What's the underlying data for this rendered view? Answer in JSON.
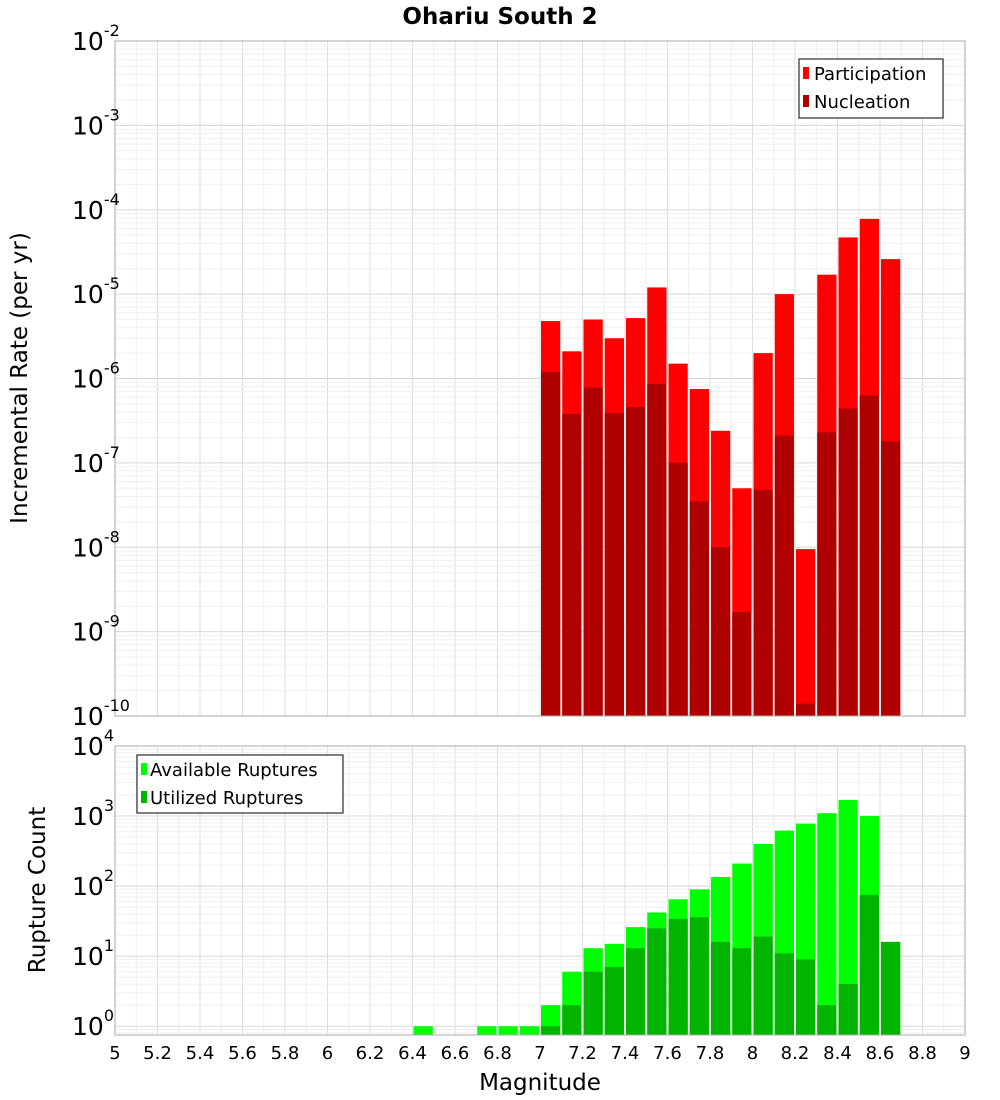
{
  "chart_data": [
    {
      "type": "bar",
      "title": "Ohariu South 2",
      "ylabel": "Incremental Rate (per yr)",
      "yscale": "log",
      "ylim": [
        1e-10,
        0.01
      ],
      "xlim": [
        5,
        9
      ],
      "bar_width": 0.1,
      "grid": true,
      "legend_position": "top-right",
      "y_tick_exponents": [
        "-2",
        "-3",
        "-4",
        "-5",
        "-6",
        "-7",
        "-8",
        "-9",
        "-10"
      ],
      "series": [
        {
          "name": "Participation",
          "color": "#ff0000",
          "points": [
            {
              "x": 7.05,
              "y": 4.8e-06
            },
            {
              "x": 7.15,
              "y": 2.1e-06
            },
            {
              "x": 7.25,
              "y": 5e-06
            },
            {
              "x": 7.35,
              "y": 3e-06
            },
            {
              "x": 7.45,
              "y": 5.2e-06
            },
            {
              "x": 7.55,
              "y": 1.2e-05
            },
            {
              "x": 7.65,
              "y": 1.5e-06
            },
            {
              "x": 7.75,
              "y": 7.5e-07
            },
            {
              "x": 7.85,
              "y": 2.4e-07
            },
            {
              "x": 7.95,
              "y": 5e-08
            },
            {
              "x": 8.05,
              "y": 2e-06
            },
            {
              "x": 8.15,
              "y": 1e-05
            },
            {
              "x": 8.25,
              "y": 9.5e-09
            },
            {
              "x": 8.35,
              "y": 1.7e-05
            },
            {
              "x": 8.45,
              "y": 4.7e-05
            },
            {
              "x": 8.55,
              "y": 7.8e-05
            },
            {
              "x": 8.65,
              "y": 2.6e-05
            }
          ]
        },
        {
          "name": "Nucleation",
          "color": "#b00000",
          "points": [
            {
              "x": 7.05,
              "y": 1.2e-06
            },
            {
              "x": 7.15,
              "y": 3.8e-07
            },
            {
              "x": 7.25,
              "y": 7.8e-07
            },
            {
              "x": 7.35,
              "y": 3.9e-07
            },
            {
              "x": 7.45,
              "y": 4.6e-07
            },
            {
              "x": 7.55,
              "y": 8.6e-07
            },
            {
              "x": 7.65,
              "y": 1e-07
            },
            {
              "x": 7.75,
              "y": 3.5e-08
            },
            {
              "x": 7.85,
              "y": 1e-08
            },
            {
              "x": 7.95,
              "y": 1.7e-09
            },
            {
              "x": 8.05,
              "y": 4.8e-08
            },
            {
              "x": 8.15,
              "y": 2.1e-07
            },
            {
              "x": 8.25,
              "y": 1.4e-10
            },
            {
              "x": 8.35,
              "y": 2.3e-07
            },
            {
              "x": 8.45,
              "y": 4.4e-07
            },
            {
              "x": 8.55,
              "y": 6.3e-07
            },
            {
              "x": 8.65,
              "y": 1.8e-07
            }
          ]
        }
      ]
    },
    {
      "type": "bar",
      "ylabel": "Rupture Count",
      "xlabel": "Magnitude",
      "yscale": "log",
      "ylim": [
        0.75,
        10000
      ],
      "xlim": [
        5,
        9
      ],
      "bar_width": 0.1,
      "grid": true,
      "legend_position": "top-left",
      "y_tick_exponents": [
        "4",
        "3",
        "2",
        "1",
        "0"
      ],
      "x_tick_labels": [
        "5",
        "5.2",
        "5.4",
        "5.6",
        "5.8",
        "6",
        "6.2",
        "6.4",
        "6.6",
        "6.8",
        "7",
        "7.2",
        "7.4",
        "7.6",
        "7.8",
        "8",
        "8.2",
        "8.4",
        "8.6",
        "8.8",
        "9"
      ],
      "series": [
        {
          "name": "Available Ruptures",
          "color": "#00ff00",
          "points": [
            {
              "x": 6.45,
              "y": 1
            },
            {
              "x": 6.75,
              "y": 1
            },
            {
              "x": 6.85,
              "y": 1
            },
            {
              "x": 6.95,
              "y": 1
            },
            {
              "x": 7.05,
              "y": 2
            },
            {
              "x": 7.15,
              "y": 6
            },
            {
              "x": 7.25,
              "y": 13
            },
            {
              "x": 7.35,
              "y": 15
            },
            {
              "x": 7.45,
              "y": 26
            },
            {
              "x": 7.55,
              "y": 42
            },
            {
              "x": 7.65,
              "y": 65
            },
            {
              "x": 7.75,
              "y": 90
            },
            {
              "x": 7.85,
              "y": 135
            },
            {
              "x": 7.95,
              "y": 210
            },
            {
              "x": 8.05,
              "y": 400
            },
            {
              "x": 8.15,
              "y": 620
            },
            {
              "x": 8.25,
              "y": 780
            },
            {
              "x": 8.35,
              "y": 1100
            },
            {
              "x": 8.45,
              "y": 1700
            },
            {
              "x": 8.55,
              "y": 1000
            },
            {
              "x": 8.65,
              "y": 16
            }
          ]
        },
        {
          "name": "Utilized Ruptures",
          "color": "#00b400",
          "points": [
            {
              "x": 7.05,
              "y": 1
            },
            {
              "x": 7.15,
              "y": 2
            },
            {
              "x": 7.25,
              "y": 6
            },
            {
              "x": 7.35,
              "y": 7
            },
            {
              "x": 7.45,
              "y": 13
            },
            {
              "x": 7.55,
              "y": 25
            },
            {
              "x": 7.65,
              "y": 34
            },
            {
              "x": 7.75,
              "y": 36
            },
            {
              "x": 7.85,
              "y": 16
            },
            {
              "x": 7.95,
              "y": 13
            },
            {
              "x": 8.05,
              "y": 19
            },
            {
              "x": 8.15,
              "y": 11
            },
            {
              "x": 8.25,
              "y": 9
            },
            {
              "x": 8.35,
              "y": 2
            },
            {
              "x": 8.45,
              "y": 4
            },
            {
              "x": 8.55,
              "y": 75
            },
            {
              "x": 8.65,
              "y": 16
            }
          ]
        }
      ]
    }
  ]
}
